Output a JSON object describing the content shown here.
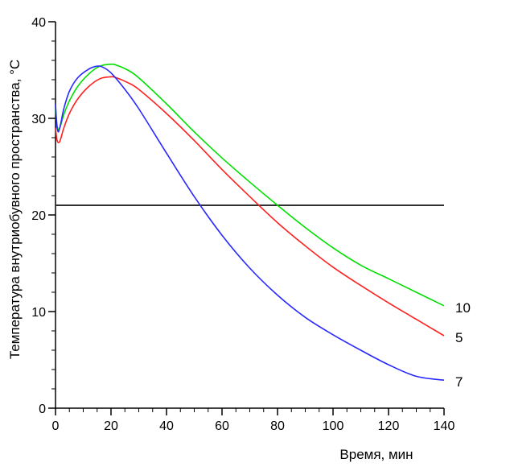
{
  "chart_data": {
    "type": "line",
    "title": "",
    "xlabel": "Время, мин",
    "ylabel": "Температура внутриобувного пространства, °С",
    "xlim": [
      0,
      140
    ],
    "ylim": [
      0,
      40
    ],
    "x_ticks": [
      0,
      20,
      40,
      60,
      80,
      100,
      120,
      140
    ],
    "x_minor_step": 5,
    "y_ticks": [
      0,
      10,
      20,
      30,
      40
    ],
    "y_minor_step": 2,
    "grid": false,
    "legend": "none",
    "reference_line": {
      "y": 21,
      "color": "#303030"
    },
    "series": [
      {
        "name": "10",
        "color": "#00e000",
        "x": [
          0,
          0.5,
          1,
          1.5,
          2,
          3,
          5,
          8,
          12,
          16,
          20,
          22,
          26,
          30,
          40,
          50,
          60,
          70,
          80,
          90,
          100,
          110,
          120,
          130,
          140
        ],
        "y": [
          31.0,
          29.4,
          28.8,
          29.0,
          29.4,
          30.4,
          31.8,
          33.3,
          34.6,
          35.4,
          35.6,
          35.5,
          35.0,
          34.2,
          31.5,
          28.6,
          25.9,
          23.4,
          21.0,
          18.7,
          16.6,
          14.8,
          13.4,
          12.0,
          10.6
        ]
      },
      {
        "name": "5",
        "color": "#ff2020",
        "x": [
          0,
          0.5,
          1,
          1.5,
          2,
          3,
          5,
          8,
          12,
          16,
          20,
          22,
          26,
          30,
          40,
          50,
          60,
          70,
          80,
          90,
          100,
          110,
          120,
          130,
          140
        ],
        "y": [
          29.0,
          27.8,
          27.5,
          27.6,
          28.0,
          29.0,
          30.5,
          32.0,
          33.3,
          34.1,
          34.3,
          34.2,
          33.7,
          33.0,
          30.5,
          27.7,
          24.7,
          21.9,
          19.2,
          16.8,
          14.6,
          12.7,
          10.9,
          9.2,
          7.5
        ]
      },
      {
        "name": "7",
        "color": "#2828ff",
        "x": [
          0,
          0.5,
          1,
          1.5,
          2,
          3,
          5,
          8,
          12,
          15,
          17,
          20,
          25,
          30,
          40,
          50,
          60,
          70,
          80,
          90,
          100,
          110,
          120,
          130,
          140
        ],
        "y": [
          31.5,
          29.2,
          28.6,
          29.0,
          29.6,
          31.0,
          32.8,
          34.2,
          35.1,
          35.4,
          35.3,
          34.7,
          33.0,
          31.0,
          26.4,
          21.9,
          17.9,
          14.5,
          11.7,
          9.4,
          7.6,
          6.0,
          4.5,
          3.3,
          2.9
        ]
      }
    ]
  }
}
